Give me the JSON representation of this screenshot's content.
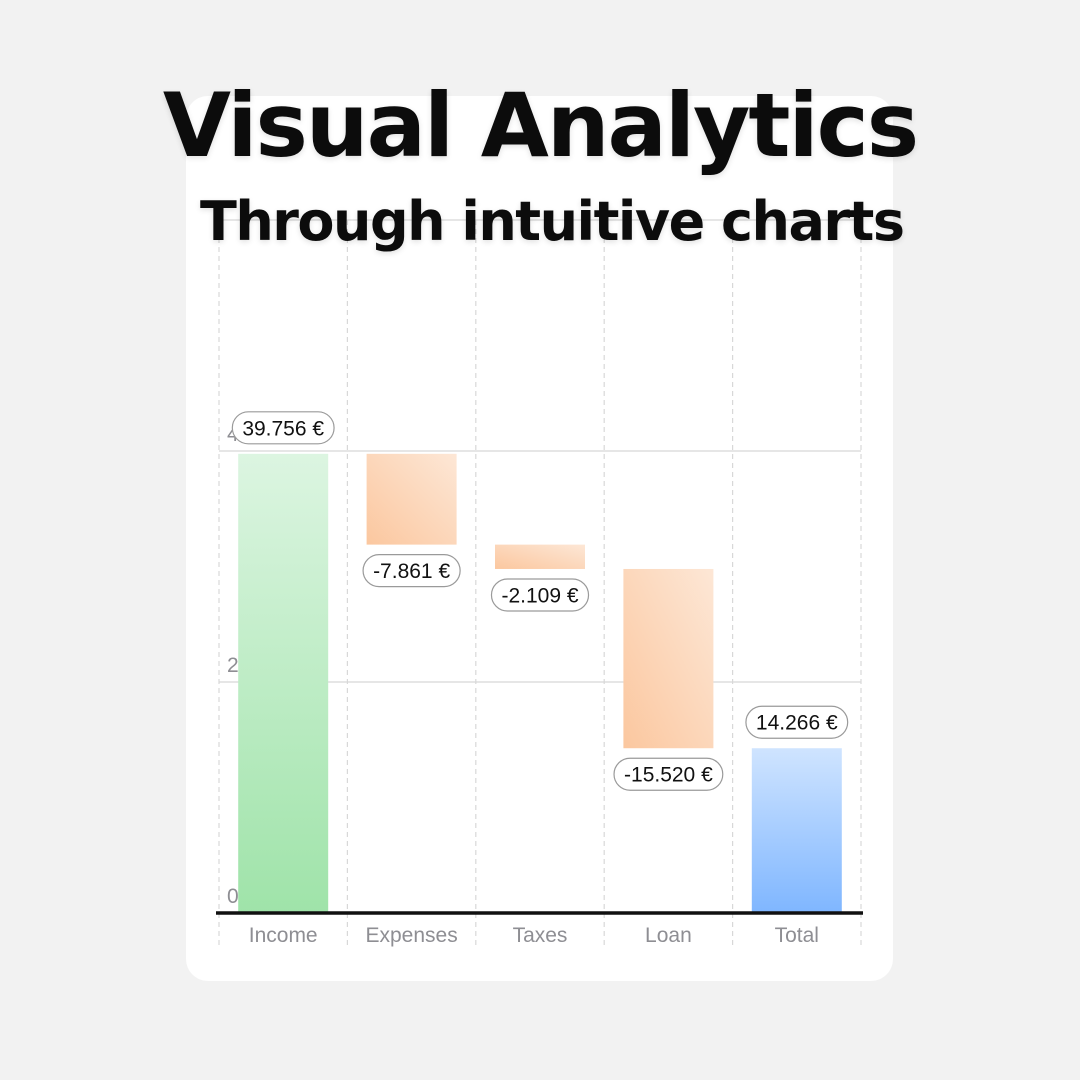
{
  "headline": "Visual Analytics",
  "subheadline": "Through intuitive charts",
  "colors": {
    "income_top": "#dcf5e1",
    "income_bottom": "#9fe3a9",
    "negative_top": "#fde7d6",
    "negative_bottom": "#fbc79f",
    "total_top": "#cfe4ff",
    "total_bottom": "#7fb6ff",
    "axis": "#111111",
    "grid": "#d8d8d8"
  },
  "chart_data": {
    "type": "bar",
    "subtype": "waterfall",
    "categories": [
      "Income",
      "Expenses",
      "Taxes",
      "Loan",
      "Total"
    ],
    "values": [
      39756,
      -7861,
      -2109,
      -15520,
      14266
    ],
    "value_labels": [
      "39.756 €",
      "-7.861 €",
      "-2.109 €",
      "-15.520 €",
      "14.266 €"
    ],
    "y_ticks": [
      0,
      20000,
      40000
    ],
    "y_tick_labels": [
      "0",
      "20.000",
      "40.000"
    ],
    "ylim": [
      0,
      60000
    ],
    "grid": true
  }
}
